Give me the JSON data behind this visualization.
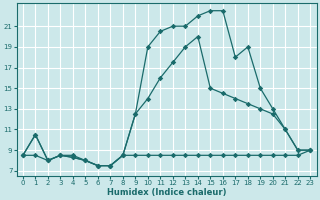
{
  "xlabel": "Humidex (Indice chaleur)",
  "bg_color": "#cce8ea",
  "grid_color": "#b0d4d8",
  "line_color": "#1a6b6b",
  "curve_top_x": [
    0,
    1,
    2,
    3,
    4,
    5,
    6,
    7,
    8,
    9,
    10,
    11,
    12,
    13,
    14,
    15,
    16,
    17,
    18,
    19,
    20,
    21,
    22,
    23
  ],
  "curve_top_y": [
    8.5,
    10.5,
    8.0,
    8.5,
    8.5,
    8.0,
    7.5,
    7.5,
    8.5,
    12.5,
    19.0,
    20.5,
    21.0,
    21.0,
    22.0,
    22.5,
    22.5,
    18.0,
    19.0,
    15.0,
    13.0,
    11.0,
    9.0,
    9.0
  ],
  "curve_mid_x": [
    0,
    1,
    2,
    3,
    4,
    5,
    6,
    7,
    8,
    9,
    10,
    11,
    12,
    13,
    14,
    15,
    16,
    17,
    18,
    19,
    20,
    21,
    22,
    23
  ],
  "curve_mid_y": [
    8.5,
    10.5,
    8.0,
    8.5,
    8.3,
    8.0,
    7.5,
    7.5,
    8.5,
    12.5,
    14.0,
    16.0,
    17.5,
    19.0,
    20.0,
    15.0,
    14.5,
    14.0,
    13.5,
    13.0,
    12.5,
    11.0,
    9.0,
    9.0
  ],
  "curve_bot_x": [
    0,
    1,
    2,
    3,
    4,
    5,
    6,
    7,
    8,
    9,
    10,
    11,
    12,
    13,
    14,
    15,
    16,
    17,
    18,
    19,
    20,
    21,
    22,
    23
  ],
  "curve_bot_y": [
    8.5,
    8.5,
    8.0,
    8.5,
    8.3,
    8.0,
    7.5,
    7.5,
    8.5,
    8.5,
    8.5,
    8.5,
    8.5,
    8.5,
    8.5,
    8.5,
    8.5,
    8.5,
    8.5,
    8.5,
    8.5,
    8.5,
    8.5,
    9.0
  ],
  "xlim": [
    -0.5,
    23.5
  ],
  "ylim": [
    6.5,
    23.2
  ],
  "yticks": [
    7,
    9,
    11,
    13,
    15,
    17,
    19,
    21
  ],
  "xticks": [
    0,
    1,
    2,
    3,
    4,
    5,
    6,
    7,
    8,
    9,
    10,
    11,
    12,
    13,
    14,
    15,
    16,
    17,
    18,
    19,
    20,
    21,
    22,
    23
  ],
  "markersize": 2.8,
  "linewidth": 0.9
}
